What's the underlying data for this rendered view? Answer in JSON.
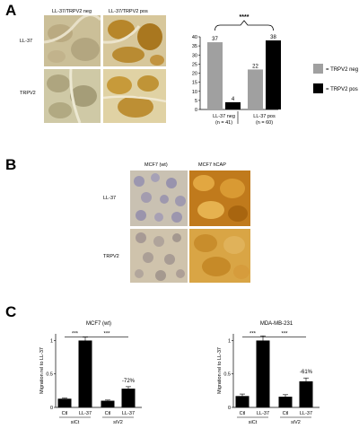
{
  "panels": {
    "a": {
      "letter": "A",
      "col_headers": [
        "LL-37/TRPV2 neg",
        "LL-37/TRPV2 pos"
      ],
      "row_labels": [
        "LL-37",
        "TRPV2"
      ]
    },
    "b": {
      "letter": "B",
      "col_headers": [
        "MCF7 (wt)",
        "MCF7 hCAP"
      ],
      "row_labels": [
        "LL-37",
        "TRPV2"
      ]
    },
    "c": {
      "letter": "C"
    }
  },
  "chart_data": [
    {
      "id": "A-bar",
      "type": "bar",
      "title": "",
      "xlabel": "",
      "ylabel": "",
      "ylim": [
        0,
        40
      ],
      "yticks": [
        "0",
        "5",
        "10",
        "15",
        "20",
        "25",
        "30",
        "35",
        "40"
      ],
      "groups": [
        {
          "label": "LL-37 neg",
          "n": "(n = 41)"
        },
        {
          "label": "LL-37 pos",
          "n": "(n = 60)"
        }
      ],
      "series": [
        {
          "name": "= TRPV2 neg",
          "color": "#a0a0a0",
          "values": [
            37,
            22
          ]
        },
        {
          "name": "= TRPV2 pos",
          "color": "#000000",
          "values": [
            4,
            38
          ]
        }
      ],
      "data_labels": [
        "37",
        "4",
        "22",
        "38"
      ],
      "significance": "****",
      "legend": "right"
    },
    {
      "id": "C-left",
      "type": "bar",
      "title": "MCF7 (wt)",
      "ylabel": "Migration rel to LL-37",
      "ylim": [
        0,
        1.1
      ],
      "yticks": [
        "0",
        "0.5",
        "1"
      ],
      "categories": [
        "Ctl",
        "LL-37",
        "Ctl",
        "LL-37"
      ],
      "values": [
        0.13,
        1.0,
        0.1,
        0.28
      ],
      "errors": [
        0.01,
        0.05,
        0.01,
        0.03
      ],
      "colors": [
        "#000000",
        "#000000",
        "#000000",
        "#000000"
      ],
      "groups": [
        "siCt",
        "siV2"
      ],
      "significance": [
        "***",
        "***"
      ],
      "annotation": "-72%"
    },
    {
      "id": "C-right",
      "type": "bar",
      "title": "MDA-MB-231",
      "ylabel": "Migration rel to LL-37",
      "ylim": [
        0,
        1.1
      ],
      "yticks": [
        "0",
        "0.5",
        "1"
      ],
      "categories": [
        "Ctl",
        "LL-37",
        "Ctl",
        "LL-37"
      ],
      "values": [
        0.17,
        1.0,
        0.16,
        0.39
      ],
      "errors": [
        0.03,
        0.07,
        0.03,
        0.05
      ],
      "colors": [
        "#000000",
        "#000000",
        "#000000",
        "#000000"
      ],
      "groups": [
        "siCt",
        "siV2"
      ],
      "significance": [
        "***",
        "***"
      ],
      "annotation": "-61%"
    }
  ]
}
